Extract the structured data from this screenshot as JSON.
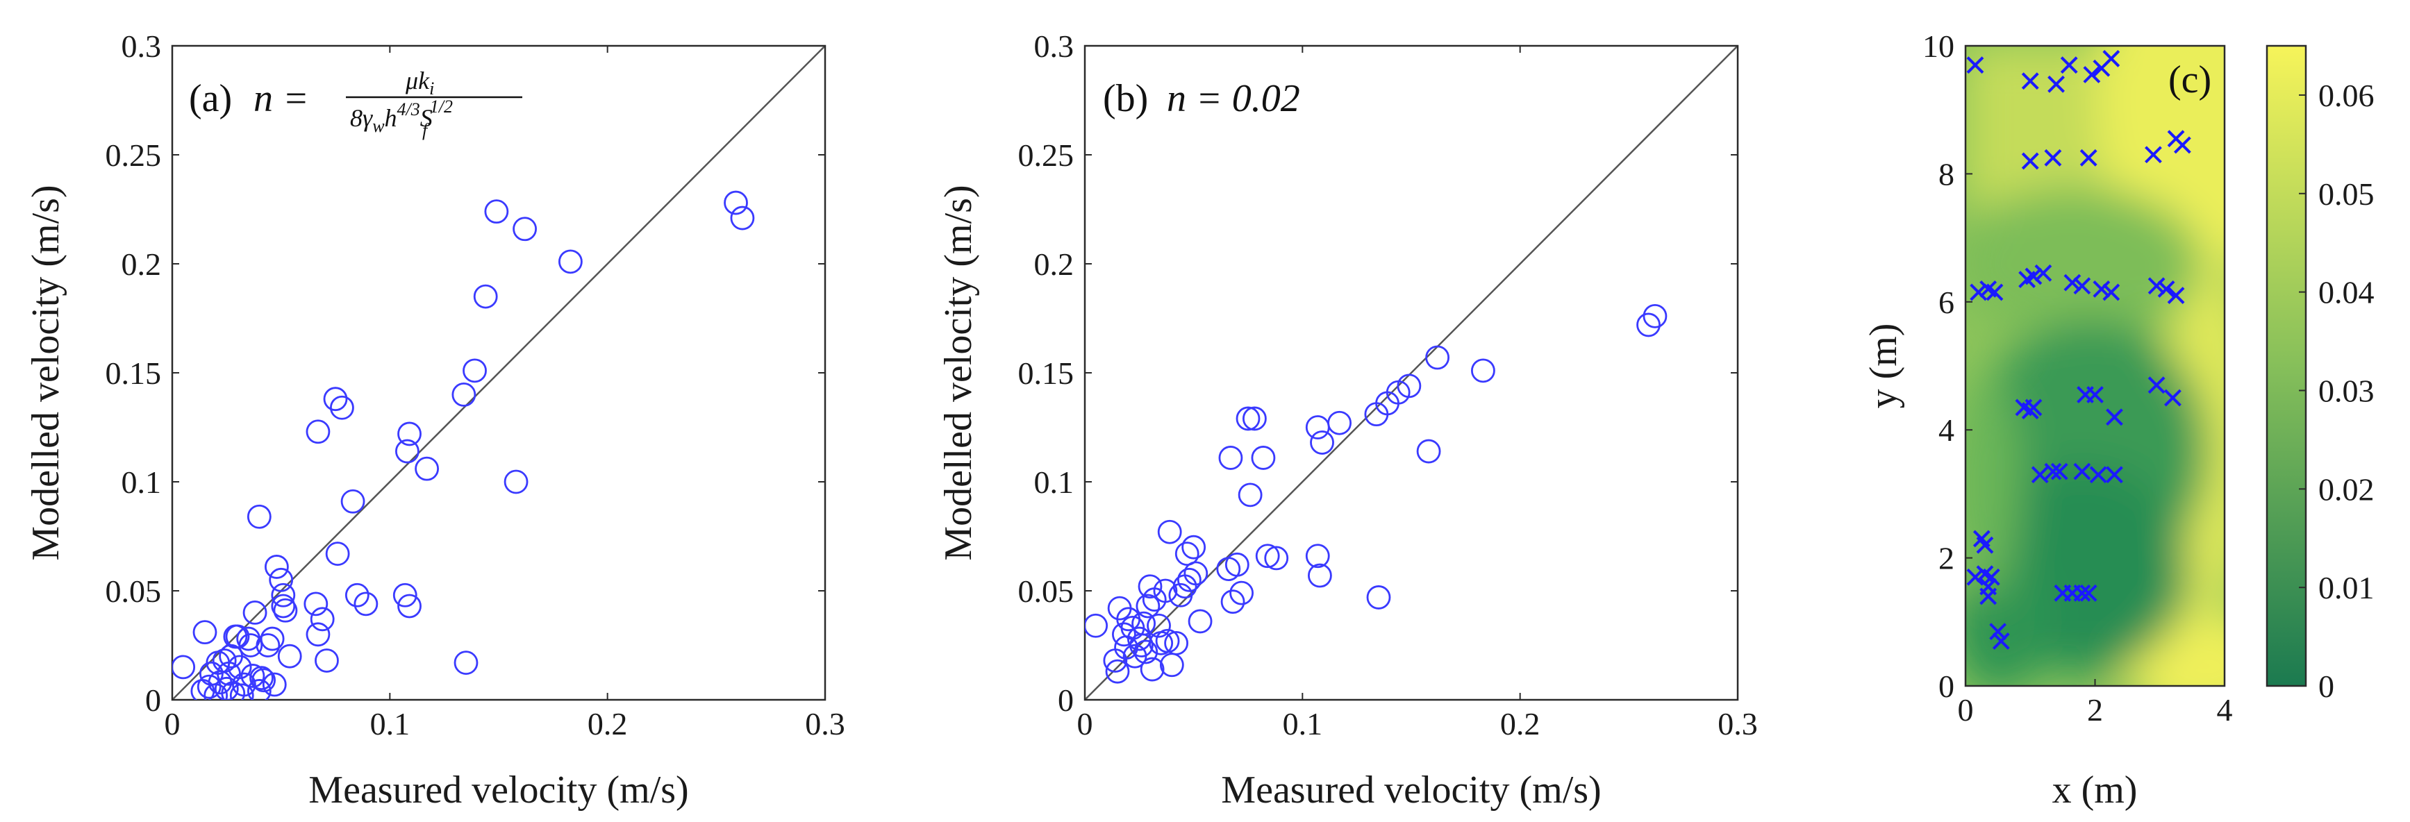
{
  "chart_data": [
    {
      "type": "scatter",
      "panel": "a",
      "annotation": {
        "label": "(a)",
        "lhs": "n =",
        "numerator": "μk",
        "numerator_sub": "i",
        "denominator": "8γ",
        "den_sub_w": "w",
        "den_h": "h",
        "den_h_sup": "4/3",
        "den_S": "S",
        "den_S_sub": "f",
        "den_S_sup": "1/2"
      },
      "xlabel": "Measured velocity (m/s)",
      "ylabel": "Modelled velocity (m/s)",
      "xlim": [
        0,
        0.3
      ],
      "ylim": [
        0,
        0.3
      ],
      "xticks": [
        "0",
        "0.1",
        "0.2",
        "0.3"
      ],
      "yticks": [
        "0",
        "0.05",
        "0.1",
        "0.15",
        "0.2",
        "0.25",
        "0.3"
      ],
      "reference_line": "y = x",
      "marker_color": "#3a3aff",
      "points": [
        [
          0.005,
          0.015
        ],
        [
          0.014,
          0.004
        ],
        [
          0.015,
          0.031
        ],
        [
          0.017,
          0.006
        ],
        [
          0.018,
          0.012
        ],
        [
          0.02,
          0.002
        ],
        [
          0.021,
          0.017
        ],
        [
          0.022,
          0.008
        ],
        [
          0.024,
          0.018
        ],
        [
          0.025,
          0.005
        ],
        [
          0.026,
          0.012
        ],
        [
          0.027,
          0.02
        ],
        [
          0.028,
          0.003
        ],
        [
          0.029,
          0.029
        ],
        [
          0.03,
          0.029
        ],
        [
          0.031,
          0.015
        ],
        [
          0.032,
          0.002
        ],
        [
          0.033,
          0.007
        ],
        [
          0.035,
          0.028
        ],
        [
          0.036,
          0.025
        ],
        [
          0.037,
          0.011
        ],
        [
          0.038,
          0.04
        ],
        [
          0.04,
          0.004
        ],
        [
          0.04,
          0.084
        ],
        [
          0.041,
          0.01
        ],
        [
          0.042,
          0.009
        ],
        [
          0.044,
          0.025
        ],
        [
          0.046,
          0.028
        ],
        [
          0.047,
          0.007
        ],
        [
          0.048,
          0.061
        ],
        [
          0.05,
          0.055
        ],
        [
          0.051,
          0.048
        ],
        [
          0.051,
          0.043
        ],
        [
          0.052,
          0.041
        ],
        [
          0.054,
          0.02
        ],
        [
          0.066,
          0.044
        ],
        [
          0.067,
          0.03
        ],
        [
          0.067,
          0.123
        ],
        [
          0.069,
          0.037
        ],
        [
          0.071,
          0.018
        ],
        [
          0.075,
          0.138
        ],
        [
          0.076,
          0.067
        ],
        [
          0.078,
          0.134
        ],
        [
          0.083,
          0.091
        ],
        [
          0.085,
          0.048
        ],
        [
          0.089,
          0.044
        ],
        [
          0.107,
          0.048
        ],
        [
          0.108,
          0.114
        ],
        [
          0.109,
          0.043
        ],
        [
          0.109,
          0.122
        ],
        [
          0.117,
          0.106
        ],
        [
          0.134,
          0.14
        ],
        [
          0.135,
          0.017
        ],
        [
          0.139,
          0.151
        ],
        [
          0.144,
          0.185
        ],
        [
          0.149,
          0.224
        ],
        [
          0.158,
          0.1
        ],
        [
          0.162,
          0.216
        ],
        [
          0.183,
          0.201
        ],
        [
          0.259,
          0.228
        ],
        [
          0.262,
          0.221
        ]
      ]
    },
    {
      "type": "scatter",
      "panel": "b",
      "annotation": {
        "label": "(b)",
        "lhs": "n = 0.02"
      },
      "xlabel": "Measured velocity (m/s)",
      "ylabel": "Modelled velocity (m/s)",
      "xlim": [
        0,
        0.3
      ],
      "ylim": [
        0,
        0.3
      ],
      "xticks": [
        "0",
        "0.1",
        "0.2",
        "0.3"
      ],
      "yticks": [
        "0",
        "0.05",
        "0.1",
        "0.15",
        "0.2",
        "0.25",
        "0.3"
      ],
      "reference_line": "y = x",
      "marker_color": "#3a3aff",
      "points": [
        [
          0.005,
          0.034
        ],
        [
          0.014,
          0.018
        ],
        [
          0.015,
          0.013
        ],
        [
          0.016,
          0.042
        ],
        [
          0.018,
          0.03
        ],
        [
          0.019,
          0.024
        ],
        [
          0.02,
          0.037
        ],
        [
          0.022,
          0.033
        ],
        [
          0.023,
          0.02
        ],
        [
          0.025,
          0.028
        ],
        [
          0.026,
          0.025
        ],
        [
          0.027,
          0.035
        ],
        [
          0.028,
          0.022
        ],
        [
          0.029,
          0.043
        ],
        [
          0.03,
          0.052
        ],
        [
          0.031,
          0.014
        ],
        [
          0.032,
          0.046
        ],
        [
          0.034,
          0.034
        ],
        [
          0.035,
          0.026
        ],
        [
          0.037,
          0.05
        ],
        [
          0.038,
          0.027
        ],
        [
          0.039,
          0.077
        ],
        [
          0.04,
          0.016
        ],
        [
          0.042,
          0.026
        ],
        [
          0.044,
          0.048
        ],
        [
          0.046,
          0.052
        ],
        [
          0.047,
          0.067
        ],
        [
          0.048,
          0.055
        ],
        [
          0.05,
          0.07
        ],
        [
          0.051,
          0.058
        ],
        [
          0.053,
          0.036
        ],
        [
          0.066,
          0.06
        ],
        [
          0.067,
          0.111
        ],
        [
          0.068,
          0.045
        ],
        [
          0.07,
          0.062
        ],
        [
          0.072,
          0.049
        ],
        [
          0.075,
          0.129
        ],
        [
          0.076,
          0.094
        ],
        [
          0.078,
          0.129
        ],
        [
          0.082,
          0.111
        ],
        [
          0.084,
          0.066
        ],
        [
          0.088,
          0.065
        ],
        [
          0.107,
          0.125
        ],
        [
          0.107,
          0.066
        ],
        [
          0.108,
          0.057
        ],
        [
          0.109,
          0.118
        ],
        [
          0.117,
          0.127
        ],
        [
          0.134,
          0.131
        ],
        [
          0.135,
          0.047
        ],
        [
          0.139,
          0.136
        ],
        [
          0.144,
          0.141
        ],
        [
          0.149,
          0.144
        ],
        [
          0.158,
          0.114
        ],
        [
          0.162,
          0.157
        ],
        [
          0.183,
          0.151
        ],
        [
          0.259,
          0.172
        ],
        [
          0.262,
          0.176
        ]
      ]
    },
    {
      "type": "heatmap",
      "panel": "c",
      "annotation": {
        "label": "(c)"
      },
      "xlabel": "x (m)",
      "ylabel": "y (m)",
      "xlim": [
        0,
        4
      ],
      "ylim": [
        0,
        10
      ],
      "xticks": [
        "0",
        "2",
        "4"
      ],
      "yticks": [
        "0",
        "2",
        "4",
        "6",
        "8",
        "10"
      ],
      "colorbar": {
        "range": [
          0,
          0.065
        ],
        "ticks": [
          "0",
          "0.01",
          "0.02",
          "0.03",
          "0.04",
          "0.05",
          "0.06"
        ],
        "colormap": "summer",
        "low_color": "#1b7a50",
        "high_color": "#f6f45a"
      },
      "marker_color": "#1a1aff",
      "marker": "x",
      "measurement_points": [
        [
          0.15,
          9.7
        ],
        [
          1.0,
          9.45
        ],
        [
          1.4,
          9.4
        ],
        [
          1.6,
          9.7
        ],
        [
          1.95,
          9.55
        ],
        [
          2.1,
          9.65
        ],
        [
          2.25,
          9.8
        ],
        [
          1.0,
          8.2
        ],
        [
          1.35,
          8.25
        ],
        [
          1.9,
          8.25
        ],
        [
          2.9,
          8.3
        ],
        [
          3.25,
          8.55
        ],
        [
          3.35,
          8.45
        ],
        [
          0.2,
          6.15
        ],
        [
          0.35,
          6.2
        ],
        [
          0.45,
          6.15
        ],
        [
          0.95,
          6.35
        ],
        [
          1.05,
          6.4
        ],
        [
          1.2,
          6.45
        ],
        [
          1.65,
          6.3
        ],
        [
          1.8,
          6.25
        ],
        [
          2.1,
          6.2
        ],
        [
          2.25,
          6.15
        ],
        [
          2.95,
          6.25
        ],
        [
          3.1,
          6.2
        ],
        [
          3.25,
          6.1
        ],
        [
          0.9,
          4.35
        ],
        [
          1.0,
          4.3
        ],
        [
          1.05,
          4.35
        ],
        [
          1.85,
          4.55
        ],
        [
          2.0,
          4.55
        ],
        [
          2.3,
          4.2
        ],
        [
          2.95,
          4.7
        ],
        [
          3.2,
          4.5
        ],
        [
          1.15,
          3.3
        ],
        [
          1.35,
          3.35
        ],
        [
          1.45,
          3.35
        ],
        [
          1.8,
          3.35
        ],
        [
          2.05,
          3.3
        ],
        [
          2.3,
          3.3
        ],
        [
          0.25,
          2.3
        ],
        [
          0.3,
          2.2
        ],
        [
          0.15,
          1.7
        ],
        [
          0.3,
          1.75
        ],
        [
          0.35,
          1.55
        ],
        [
          0.4,
          1.7
        ],
        [
          0.35,
          1.4
        ],
        [
          1.5,
          1.45
        ],
        [
          1.65,
          1.45
        ],
        [
          1.8,
          1.45
        ],
        [
          1.9,
          1.45
        ],
        [
          0.5,
          0.85
        ],
        [
          0.55,
          0.7
        ]
      ]
    }
  ]
}
